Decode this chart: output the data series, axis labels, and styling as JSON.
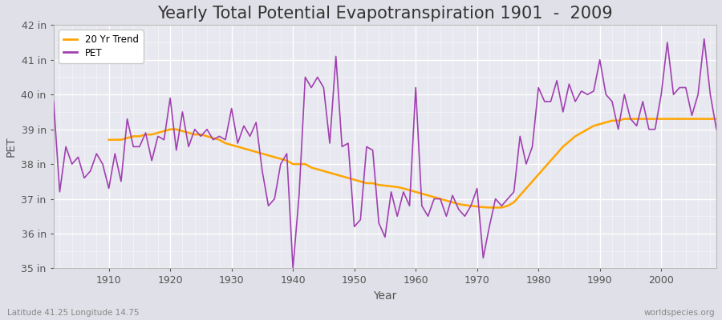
{
  "title": "Yearly Total Potential Evapotranspiration 1901  -  2009",
  "xlabel": "Year",
  "ylabel": "PET",
  "years": [
    1901,
    1902,
    1903,
    1904,
    1905,
    1906,
    1907,
    1908,
    1909,
    1910,
    1911,
    1912,
    1913,
    1914,
    1915,
    1916,
    1917,
    1918,
    1919,
    1920,
    1921,
    1922,
    1923,
    1924,
    1925,
    1926,
    1927,
    1928,
    1929,
    1930,
    1931,
    1932,
    1933,
    1934,
    1935,
    1936,
    1937,
    1938,
    1939,
    1940,
    1941,
    1942,
    1943,
    1944,
    1945,
    1946,
    1947,
    1948,
    1949,
    1950,
    1951,
    1952,
    1953,
    1954,
    1955,
    1956,
    1957,
    1958,
    1959,
    1960,
    1961,
    1962,
    1963,
    1964,
    1965,
    1966,
    1967,
    1968,
    1969,
    1970,
    1971,
    1972,
    1973,
    1974,
    1975,
    1976,
    1977,
    1978,
    1979,
    1980,
    1981,
    1982,
    1983,
    1984,
    1985,
    1986,
    1987,
    1988,
    1989,
    1990,
    1991,
    1992,
    1993,
    1994,
    1995,
    1996,
    1997,
    1998,
    1999,
    2000,
    2001,
    2002,
    2003,
    2004,
    2005,
    2006,
    2007,
    2008,
    2009
  ],
  "pet": [
    39.8,
    37.2,
    38.5,
    38.0,
    38.2,
    37.6,
    37.8,
    38.3,
    38.0,
    37.3,
    38.3,
    37.5,
    39.3,
    38.5,
    38.5,
    38.9,
    38.1,
    38.8,
    38.7,
    39.9,
    38.4,
    39.5,
    38.5,
    39.0,
    38.8,
    39.0,
    38.7,
    38.8,
    38.7,
    39.6,
    38.6,
    39.1,
    38.8,
    39.2,
    37.8,
    36.8,
    37.0,
    38.0,
    38.3,
    35.0,
    37.1,
    40.5,
    40.2,
    40.5,
    40.2,
    38.6,
    41.1,
    38.5,
    38.6,
    36.2,
    36.4,
    38.5,
    38.4,
    36.3,
    35.9,
    37.2,
    36.5,
    37.2,
    36.8,
    40.2,
    36.8,
    36.5,
    37.0,
    37.0,
    36.5,
    37.1,
    36.7,
    36.5,
    36.8,
    37.3,
    35.3,
    36.2,
    37.0,
    36.8,
    37.0,
    37.2,
    38.8,
    38.0,
    38.5,
    40.2,
    39.8,
    39.8,
    40.4,
    39.5,
    40.3,
    39.8,
    40.1,
    40.0,
    40.1,
    41.0,
    40.0,
    39.8,
    39.0,
    40.0,
    39.3,
    39.1,
    39.8,
    39.0,
    39.0,
    40.0,
    41.5,
    40.0,
    40.2,
    40.2,
    39.4,
    40.0,
    41.6,
    40.0,
    39.0
  ],
  "trend_years": [
    1910,
    1911,
    1912,
    1913,
    1914,
    1915,
    1916,
    1917,
    1918,
    1919,
    1920,
    1921,
    1922,
    1923,
    1924,
    1925,
    1926,
    1927,
    1928,
    1929,
    1930,
    1931,
    1932,
    1933,
    1934,
    1935,
    1936,
    1937,
    1938,
    1939,
    1940,
    1941,
    1942,
    1943,
    1944,
    1945,
    1946,
    1947,
    1948,
    1949,
    1950,
    1951,
    1952,
    1953,
    1954,
    1955,
    1956,
    1957,
    1958,
    1959,
    1960,
    1961,
    1962,
    1963,
    1964,
    1965,
    1966,
    1967,
    1968,
    1969,
    1970,
    1971,
    1972,
    1973,
    1974,
    1975,
    1976,
    1977,
    1978,
    1979,
    1980,
    1981,
    1982,
    1983,
    1984,
    1985,
    1986,
    1987,
    1988,
    1989,
    1990,
    1991,
    1992,
    1993,
    1994,
    1995,
    1996,
    1997,
    1998,
    1999,
    2000,
    2001,
    2002,
    2003,
    2004,
    2005,
    2006,
    2007,
    2008,
    2009
  ],
  "trend": [
    38.7,
    38.7,
    38.7,
    38.75,
    38.8,
    38.8,
    38.85,
    38.85,
    38.9,
    38.95,
    39.0,
    39.0,
    38.95,
    38.9,
    38.85,
    38.85,
    38.8,
    38.75,
    38.7,
    38.6,
    38.55,
    38.5,
    38.45,
    38.4,
    38.35,
    38.3,
    38.25,
    38.2,
    38.15,
    38.1,
    38.0,
    38.0,
    38.0,
    37.9,
    37.85,
    37.8,
    37.75,
    37.7,
    37.65,
    37.6,
    37.55,
    37.5,
    37.45,
    37.45,
    37.4,
    37.38,
    37.36,
    37.34,
    37.3,
    37.25,
    37.2,
    37.15,
    37.1,
    37.05,
    37.0,
    36.95,
    36.9,
    36.85,
    36.82,
    36.8,
    36.78,
    36.76,
    36.75,
    36.75,
    36.75,
    36.8,
    36.9,
    37.1,
    37.3,
    37.5,
    37.7,
    37.9,
    38.1,
    38.3,
    38.5,
    38.65,
    38.8,
    38.9,
    39.0,
    39.1,
    39.15,
    39.2,
    39.25,
    39.25,
    39.3,
    39.3,
    39.3,
    39.3,
    39.3,
    39.3,
    39.3,
    39.3,
    39.3,
    39.3,
    39.3,
    39.3,
    39.3,
    39.3,
    39.3,
    39.3
  ],
  "pet_color": "#a040b0",
  "trend_color": "#FFA500",
  "fig_bg_color": "#e0e0e8",
  "plot_bg_color": "#e8e8f0",
  "grid_color": "#ffffff",
  "grid_minor_color": "#d8d8e4",
  "ylim": [
    35.0,
    42.0
  ],
  "xlim": [
    1901,
    2009
  ],
  "yticks": [
    35,
    36,
    37,
    38,
    39,
    40,
    41,
    42
  ],
  "ytick_labels": [
    "35 in",
    "36 in",
    "37 in",
    "38 in",
    "39 in",
    "40 in",
    "41 in",
    "42 in"
  ],
  "xtick_years": [
    1910,
    1920,
    1930,
    1940,
    1950,
    1960,
    1970,
    1980,
    1990,
    2000
  ],
  "subtitle_left": "Latitude 41.25 Longitude 14.75",
  "subtitle_right": "worldspecies.org",
  "title_fontsize": 15,
  "label_fontsize": 10,
  "tick_fontsize": 9
}
